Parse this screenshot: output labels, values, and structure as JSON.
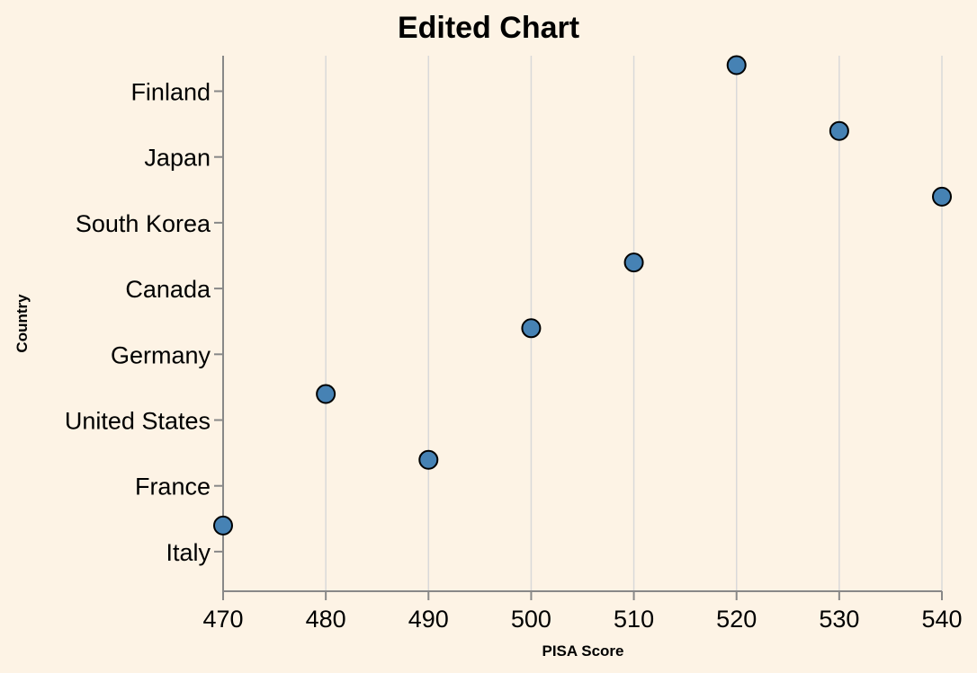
{
  "chart_data": {
    "type": "scatter",
    "title": "Edited Chart",
    "xlabel": "PISA Score",
    "ylabel": "Country",
    "xlim": [
      470,
      540
    ],
    "x_ticks": [
      470,
      480,
      490,
      500,
      510,
      520,
      530,
      540
    ],
    "grid": true,
    "categories": [
      "Finland",
      "Japan",
      "South Korea",
      "Canada",
      "Germany",
      "United States",
      "France",
      "Italy"
    ],
    "points": [
      {
        "category": "Finland",
        "x": 520
      },
      {
        "category": "Japan",
        "x": 530
      },
      {
        "category": "South Korea",
        "x": 540
      },
      {
        "category": "Canada",
        "x": 510
      },
      {
        "category": "Germany",
        "x": 500
      },
      {
        "category": "United States",
        "x": 480
      },
      {
        "category": "France",
        "x": 490
      },
      {
        "category": "Italy",
        "x": 470
      }
    ],
    "colors": {
      "background": "#fdf3e5",
      "point_fill": "#4682b4",
      "point_stroke": "#000000",
      "grid": "#d9d9d9",
      "axis": "#888888"
    }
  }
}
